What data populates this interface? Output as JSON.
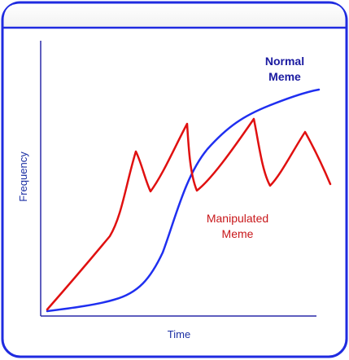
{
  "diagram": {
    "axis_labels": {
      "y": "Frequency",
      "x": "Time"
    },
    "curves": [
      {
        "name": "Normal Meme",
        "color": "#1f2ff0",
        "shape": "sigmoid"
      },
      {
        "name": "Manipulated Meme",
        "color": "#e01010",
        "shape": "sawtooth"
      }
    ],
    "labels": {
      "normal_line1": "Normal",
      "normal_line2": "Meme",
      "manipulated_line1": "Manipulated",
      "manipulated_line2": "Meme"
    },
    "colors": {
      "frame_border": "#1f2be0",
      "axis": "#2a2aa8",
      "label_text": "#1b2fa3"
    }
  }
}
